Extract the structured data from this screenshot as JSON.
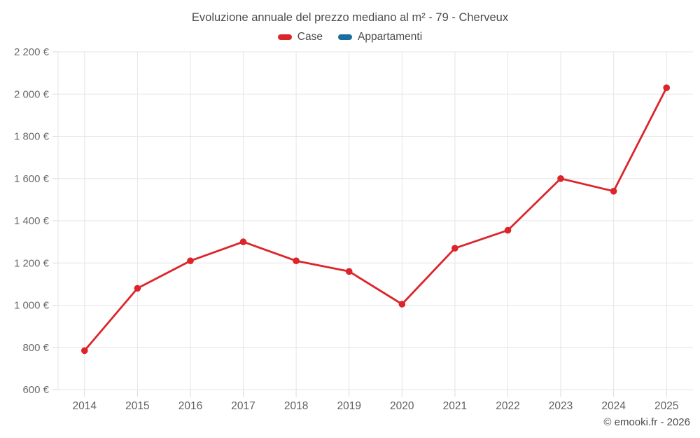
{
  "page": {
    "title": "Evoluzione annuale del prezzo mediano al m² - 79 - Cherveux",
    "footer": "© emooki.fr - 2026"
  },
  "legend": {
    "items": [
      {
        "label": "Case",
        "color": "#db252b"
      },
      {
        "label": "Appartamenti",
        "color": "#1a6f9e"
      }
    ]
  },
  "chart_data": {
    "type": "line",
    "title": "Evoluzione annuale del prezzo mediano al m² - 79 - Cherveux",
    "x": [
      "2014",
      "2015",
      "2016",
      "2017",
      "2018",
      "2019",
      "2020",
      "2021",
      "2022",
      "2023",
      "2024",
      "2025"
    ],
    "series": [
      {
        "name": "Case",
        "color": "#db252b",
        "values": [
          785,
          1080,
          1210,
          1300,
          1210,
          1160,
          1005,
          1270,
          1355,
          1600,
          1540,
          2030
        ]
      },
      {
        "name": "Appartamenti",
        "color": "#1a6f9e",
        "values": []
      }
    ],
    "ylim": [
      600,
      2200
    ],
    "ytick_step": 200,
    "ytick_labels": [
      "600 €",
      "800 €",
      "1 000 €",
      "1 200 €",
      "1 400 €",
      "1 600 €",
      "1 800 €",
      "2 000 €",
      "2 200 €"
    ],
    "xlabel": "",
    "ylabel": "",
    "grid": true,
    "legend_position": "top"
  },
  "colors": {
    "grid": "#e5e5e5",
    "tick": "#dadada",
    "left_border": "#e5e5e5"
  }
}
